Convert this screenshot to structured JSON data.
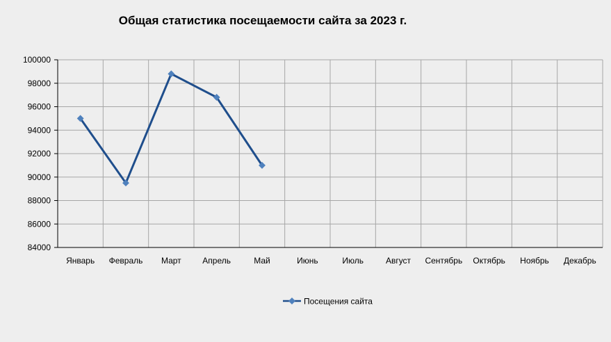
{
  "chart_data": {
    "type": "line",
    "title": "Общая статистика посещаемости сайта за 2023 г.",
    "xlabel": "",
    "ylabel": "",
    "categories": [
      "Январь",
      "Февраль",
      "Март",
      "Апрель",
      "Май",
      "Июнь",
      "Июль",
      "Август",
      "Сентябрь",
      "Октябрь",
      "Ноябрь",
      "Декабрь"
    ],
    "series": [
      {
        "name": "Посещения сайта",
        "values": [
          95000,
          89500,
          98800,
          96800,
          91000,
          null,
          null,
          null,
          null,
          null,
          null,
          null
        ],
        "color": "#1f4e8c",
        "marker_color": "#4f81bd"
      }
    ],
    "ylim": [
      84000,
      100000
    ],
    "yticks": [
      "84000",
      "86000",
      "88000",
      "90000",
      "92000",
      "94000",
      "96000",
      "98000",
      "100000"
    ],
    "grid": true,
    "legend": "bottom-center"
  }
}
